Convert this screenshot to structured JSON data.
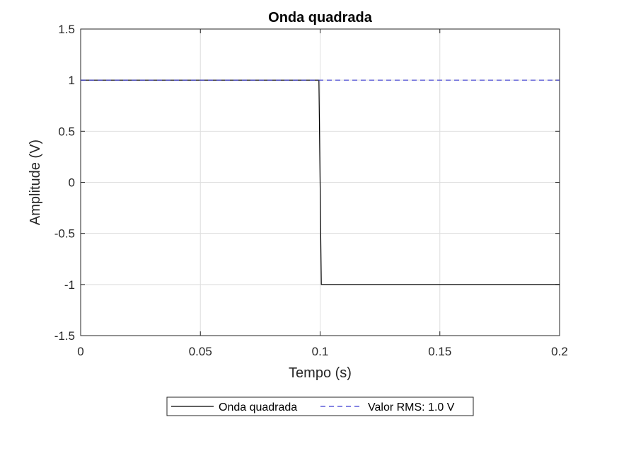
{
  "chart_data": {
    "type": "line",
    "title": "Onda quadrada",
    "xlabel": "Tempo (s)",
    "ylabel": "Amplitude (V)",
    "xlim": [
      0,
      0.2
    ],
    "ylim": [
      -1.5,
      1.5
    ],
    "xticks": [
      0,
      0.05,
      0.1,
      0.15,
      0.2
    ],
    "xtick_labels": [
      "0",
      "0.05",
      "0.1",
      "0.15",
      "0.2"
    ],
    "yticks": [
      -1.5,
      -1,
      -0.5,
      0,
      0.5,
      1,
      1.5
    ],
    "ytick_labels": [
      "-1.5",
      "-1",
      "-0.5",
      "0",
      "0.5",
      "1",
      "1.5"
    ],
    "grid": true,
    "legend_position": "bottom-outside",
    "series": [
      {
        "name": "Onda quadrada",
        "style": "solid",
        "color": "#000000",
        "x": [
          0,
          0.0995,
          0.1005,
          0.2
        ],
        "y": [
          1,
          1,
          -1,
          -1
        ]
      },
      {
        "name": "Valor RMS: 1.0 V",
        "style": "dashed",
        "color": "#3b3bd0",
        "x": [
          0,
          0.2
        ],
        "y": [
          1,
          1
        ]
      }
    ]
  }
}
